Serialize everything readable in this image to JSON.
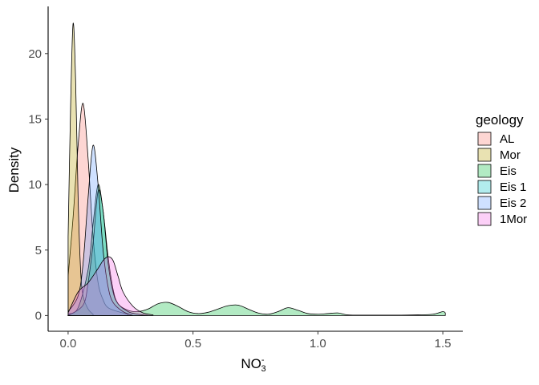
{
  "chart_data": {
    "type": "area",
    "subtype": "density",
    "xlabel": "NO",
    "xlabel_sub": "3",
    "xlabel_sup": "-",
    "ylabel": "Density",
    "xlim": [
      -0.08,
      1.58
    ],
    "ylim": [
      -1.2,
      23.6
    ],
    "x_ticks": [
      0.0,
      0.5,
      1.0,
      1.5
    ],
    "x_tick_labels": [
      "0.0",
      "0.5",
      "1.0",
      "1.5"
    ],
    "y_ticks": [
      0,
      5,
      10,
      15,
      20
    ],
    "y_tick_labels": [
      "0",
      "5",
      "10",
      "15",
      "20"
    ],
    "grid": false,
    "legend_position": "right",
    "legend_title": "geology",
    "fill_opacity": 0.3,
    "series": [
      {
        "name": "AL",
        "color": "#F8766D",
        "x": [
          0.0,
          0.02,
          0.04,
          0.06,
          0.08,
          0.1,
          0.12,
          0.14,
          0.16,
          0.2,
          0.24
        ],
        "y": [
          3.0,
          7.5,
          13.0,
          16.2,
          12.0,
          6.0,
          2.5,
          1.2,
          0.6,
          0.3,
          0.1
        ]
      },
      {
        "name": "Mor",
        "color": "#B79F00",
        "x": [
          0.0,
          0.01,
          0.02,
          0.03,
          0.04,
          0.05,
          0.06,
          0.08,
          0.1
        ],
        "y": [
          6.0,
          16.0,
          22.3,
          18.0,
          9.0,
          3.5,
          1.5,
          0.5,
          0.1
        ]
      },
      {
        "name": "Eis",
        "color": "#00BA38",
        "x": [
          0.0,
          0.04,
          0.08,
          0.1,
          0.12,
          0.14,
          0.16,
          0.18,
          0.2,
          0.24,
          0.28,
          0.32,
          0.36,
          0.4,
          0.44,
          0.48,
          0.52,
          0.56,
          0.6,
          0.64,
          0.68,
          0.72,
          0.76,
          0.8,
          0.84,
          0.88,
          0.92,
          0.96,
          1.0,
          1.04,
          1.08,
          1.12,
          1.2,
          1.3,
          1.4,
          1.46,
          1.5,
          1.51
        ],
        "y": [
          0.1,
          0.6,
          3.5,
          7.0,
          10.0,
          8.0,
          4.5,
          2.0,
          0.9,
          0.4,
          0.3,
          0.5,
          0.9,
          1.0,
          0.7,
          0.3,
          0.15,
          0.25,
          0.5,
          0.75,
          0.8,
          0.5,
          0.2,
          0.1,
          0.3,
          0.6,
          0.4,
          0.15,
          0.1,
          0.15,
          0.2,
          0.05,
          0.03,
          0.03,
          0.05,
          0.1,
          0.3,
          0.2
        ]
      },
      {
        "name": "Eis 1",
        "color": "#00BFC4",
        "x": [
          0.0,
          0.06,
          0.08,
          0.1,
          0.12,
          0.14,
          0.16,
          0.18,
          0.2,
          0.24,
          0.28,
          0.32
        ],
        "y": [
          0.0,
          0.8,
          2.5,
          5.5,
          9.5,
          8.0,
          4.0,
          1.8,
          0.9,
          0.3,
          0.1,
          0.0
        ]
      },
      {
        "name": "Eis 2",
        "color": "#619CFF",
        "x": [
          0.0,
          0.04,
          0.06,
          0.08,
          0.1,
          0.12,
          0.14,
          0.16,
          0.18,
          0.22,
          0.26
        ],
        "y": [
          0.3,
          1.5,
          4.0,
          9.0,
          13.0,
          10.0,
          5.0,
          2.2,
          1.0,
          0.3,
          0.0
        ]
      },
      {
        "name": "1Mor",
        "color": "#F564E3",
        "x": [
          0.0,
          0.04,
          0.08,
          0.12,
          0.14,
          0.16,
          0.18,
          0.2,
          0.22,
          0.26,
          0.3,
          0.34
        ],
        "y": [
          0.2,
          1.8,
          2.5,
          3.6,
          4.2,
          4.5,
          4.2,
          3.0,
          1.8,
          0.7,
          0.2,
          0.05
        ]
      }
    ]
  }
}
